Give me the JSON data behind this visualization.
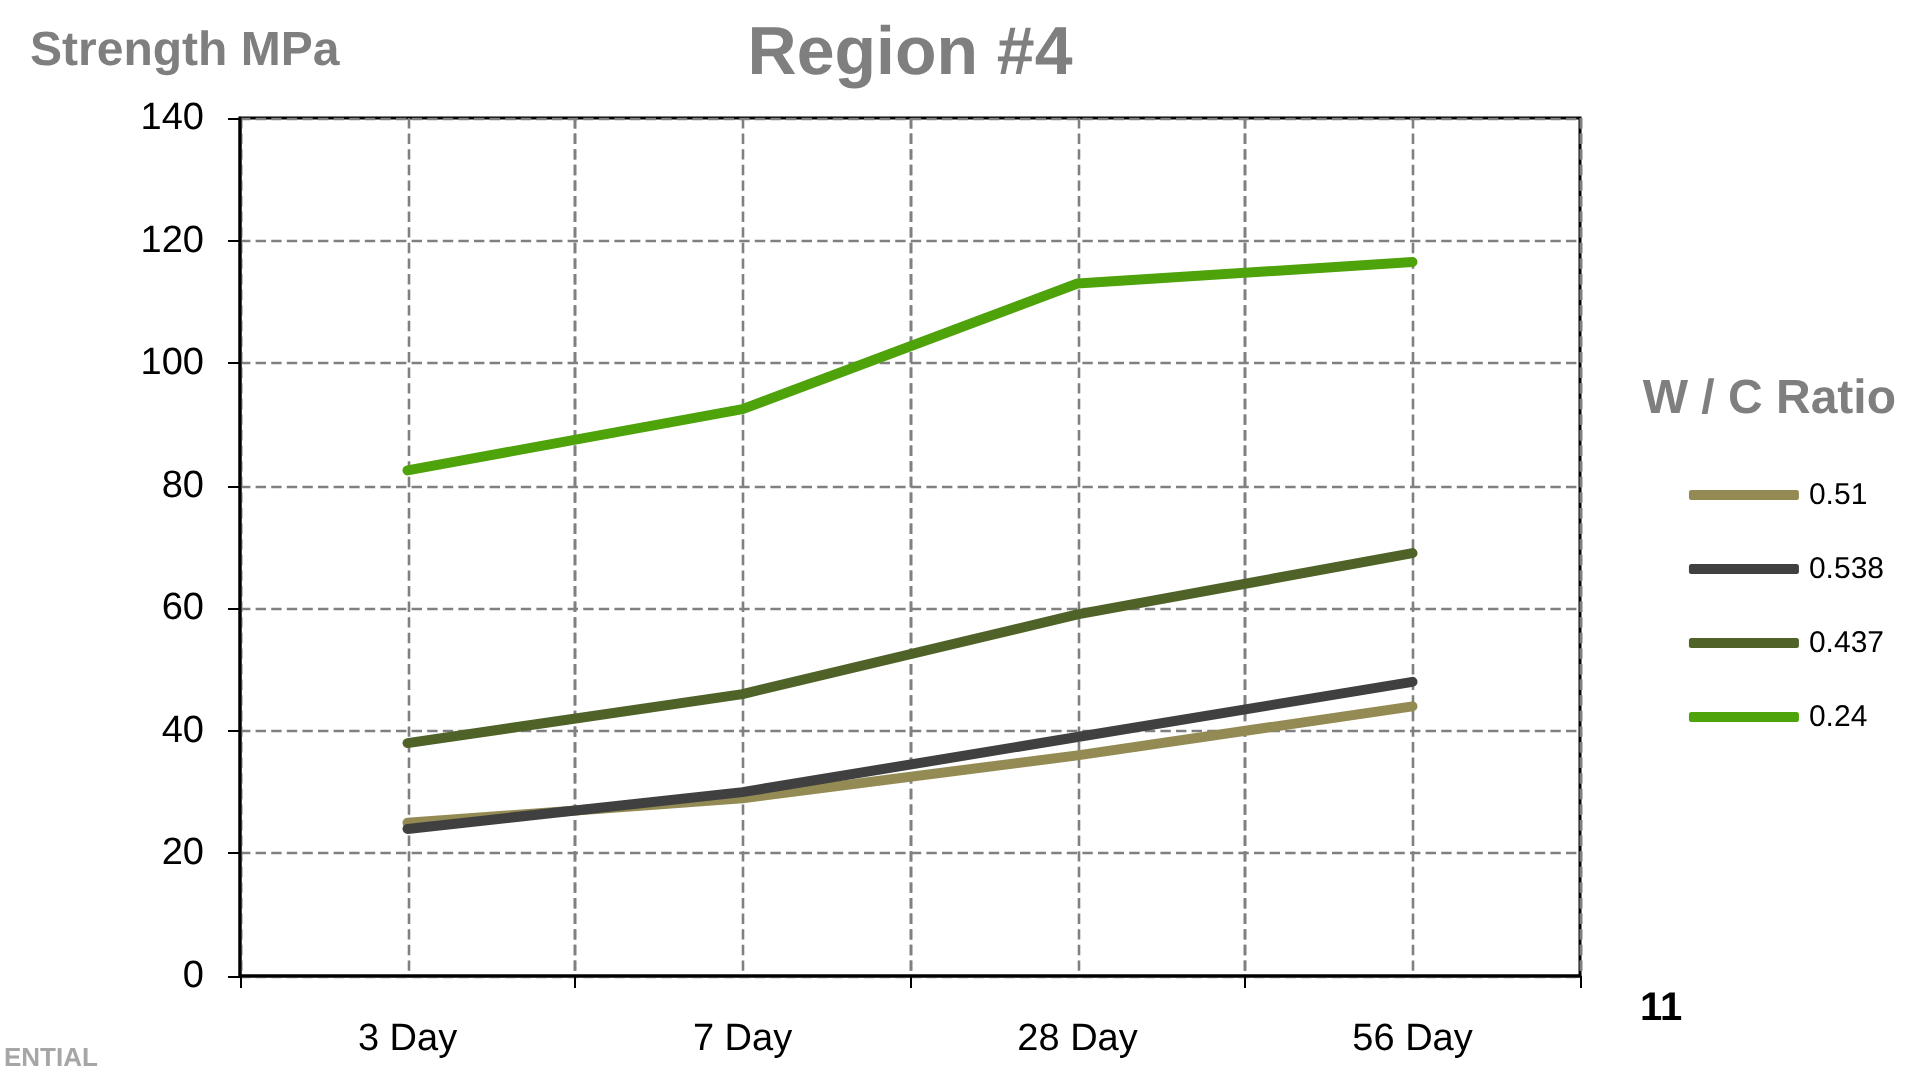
{
  "chart_data": {
    "type": "line",
    "title": "Region #4",
    "ylabel": "Strength MPa",
    "legend_title": "W / C Ratio",
    "categories": [
      "3 Day",
      "7 Day",
      "28 Day",
      "56 Day"
    ],
    "series": [
      {
        "name": "0.51",
        "color": "#948b54",
        "values": [
          25,
          29,
          36,
          44
        ]
      },
      {
        "name": "0.538",
        "color": "#404040",
        "values": [
          24,
          30,
          39,
          48
        ]
      },
      {
        "name": "0.437",
        "color": "#4f6228",
        "values": [
          38,
          46,
          59,
          69
        ]
      },
      {
        "name": "0.24",
        "color": "#4ea30a",
        "values": [
          82.5,
          92.5,
          113,
          116.5
        ]
      }
    ],
    "ylim": [
      0,
      140
    ],
    "yticks": [
      0,
      20,
      40,
      60,
      80,
      100,
      120,
      140
    ],
    "grid": true,
    "legend": "right",
    "marker": "none",
    "line_style": "solid",
    "annotations": [
      "11",
      "ENTIAL"
    ]
  }
}
